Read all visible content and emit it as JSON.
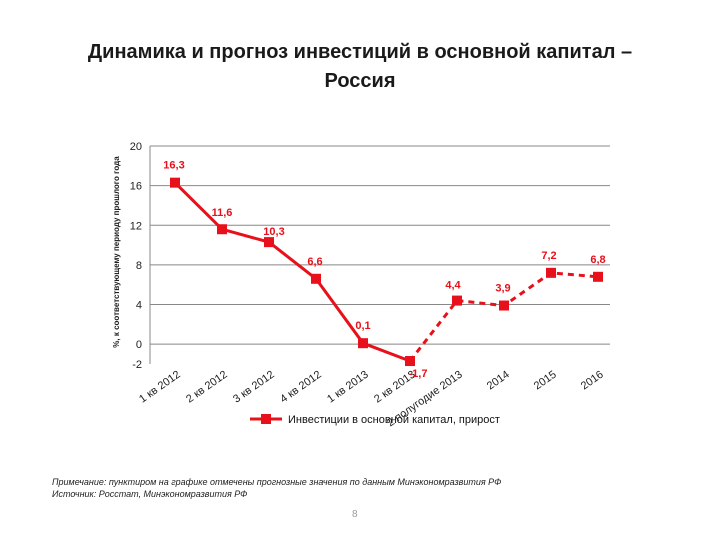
{
  "slide": {
    "title_line1": "Динамика и прогноз инвестиций в основной капитал –",
    "title_line2": "Россия",
    "note_line1": "Примечание: пунктиром на графике отмечены прогнозные значения по данным Минэкономразвития РФ",
    "note_line2": "Источник: Росстат, Минэкономразвития РФ",
    "page_number": "8"
  },
  "chart_data": {
    "type": "line",
    "title": "",
    "ylabel": "%, к соответствующему периоду прошлого года",
    "xlabel": "",
    "ylim": [
      -2,
      20
    ],
    "yticks": [
      "20",
      "16",
      "12",
      "8",
      "4",
      "0",
      "-2"
    ],
    "grid": true,
    "categories": [
      "1 кв 2012",
      "2 кв 2012",
      "3 кв 2012",
      "4 кв 2012",
      "1 кв 2013",
      "2 кв 2013",
      "2 полугодие 2013",
      "2014",
      "2015",
      "2016"
    ],
    "series": [
      {
        "name": "Инвестиции в основной капитал, прирост",
        "color": "#e8101a",
        "values": [
          16.3,
          11.6,
          10.3,
          6.6,
          0.1,
          -1.7,
          4.4,
          3.9,
          7.2,
          6.8
        ],
        "data_labels": [
          "16,3",
          "11,6",
          "10,3",
          "6,6",
          "0,1",
          "-1,7",
          "4,4",
          "3,9",
          "7,2",
          "6,8"
        ],
        "forecast_from_index": 5
      }
    ],
    "legend_position": "bottom"
  }
}
